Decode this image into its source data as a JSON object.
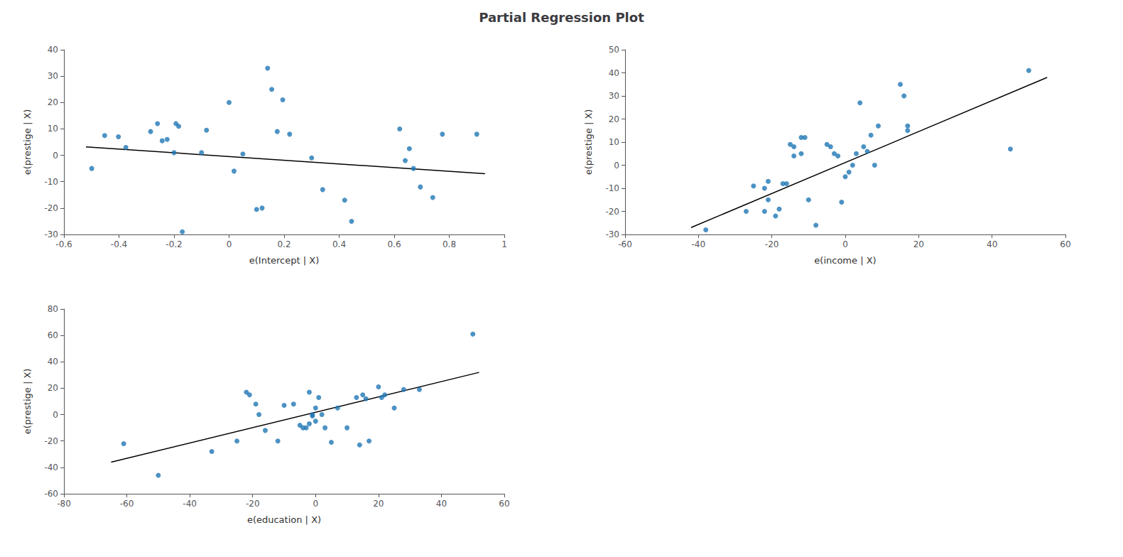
{
  "title": "Partial Regression Plot",
  "chart_data": [
    {
      "type": "scatter",
      "xlabel": "e(Intercept | X)",
      "ylabel": "e(prestige | X)",
      "xlim": [
        -0.6,
        1.0
      ],
      "xticks": [
        -0.6,
        -0.4,
        -0.2,
        0,
        0.2,
        0.4,
        0.6,
        0.8,
        1
      ],
      "ylim": [
        -30,
        40
      ],
      "yticks": [
        -30,
        -20,
        -10,
        0,
        10,
        20,
        30,
        40
      ],
      "grid": false,
      "series": [
        {
          "type": "scatter",
          "color": "#1f77b4",
          "x": [
            -0.499,
            -0.452,
            -0.402,
            -0.375,
            -0.285,
            -0.26,
            -0.243,
            -0.225,
            -0.2,
            -0.193,
            -0.183,
            -0.17,
            -0.1,
            -0.082,
            0.0,
            0.018,
            0.05,
            0.1,
            0.12,
            0.14,
            0.155,
            0.175,
            0.195,
            0.22,
            0.3,
            0.34,
            0.42,
            0.445,
            0.62,
            0.64,
            0.655,
            0.67,
            0.695,
            0.74,
            0.775,
            0.9
          ],
          "values": [
            -5.0,
            7.5,
            7.0,
            3.0,
            9.0,
            12.0,
            5.5,
            6.0,
            1.0,
            12.0,
            11.0,
            -29.0,
            1.0,
            9.5,
            20.0,
            -6.0,
            0.5,
            -20.5,
            -20.0,
            33.0,
            25.0,
            9.0,
            21.0,
            8.0,
            -1.0,
            -13.0,
            -17.0,
            -25.0,
            10.0,
            -2.0,
            2.5,
            -5.0,
            -12.0,
            -16.0,
            8.0,
            8.0
          ]
        },
        {
          "type": "line",
          "color": "black",
          "x": [
            -0.52,
            0.93
          ],
          "values": [
            3.2,
            -7.0
          ]
        }
      ]
    },
    {
      "type": "scatter",
      "xlabel": "e(income | X)",
      "ylabel": "e(prestige | X)",
      "xlim": [
        -60,
        60
      ],
      "xticks": [
        -60,
        -40,
        -20,
        0,
        20,
        40,
        60
      ],
      "ylim": [
        -30,
        50
      ],
      "yticks": [
        -30,
        -20,
        -10,
        0,
        10,
        20,
        30,
        40,
        50
      ],
      "grid": false,
      "series": [
        {
          "type": "scatter",
          "color": "#1f77b4",
          "x": [
            -38,
            -27,
            -25,
            -22,
            -22,
            -21,
            -21,
            -19,
            -18,
            -17,
            -16,
            -15,
            -14,
            -14,
            -12,
            -12,
            -11,
            -10,
            -8,
            -5,
            -4,
            -3,
            -2,
            -1,
            0,
            1,
            2,
            3,
            4,
            5,
            6,
            7,
            8,
            9,
            15,
            16,
            17,
            17,
            45,
            50
          ],
          "values": [
            -28,
            -20,
            -9,
            -10,
            -20,
            -7,
            -15,
            -22,
            -19,
            -8,
            -8,
            9,
            8,
            4,
            5,
            12,
            12,
            -15,
            -26,
            9,
            8,
            5,
            4,
            -16,
            -5,
            -3,
            0,
            5,
            27,
            8,
            6,
            13,
            0,
            17,
            35,
            30,
            15,
            17,
            7,
            41
          ]
        },
        {
          "type": "line",
          "color": "black",
          "x": [
            -42,
            55
          ],
          "values": [
            -27,
            38
          ]
        }
      ]
    },
    {
      "type": "scatter",
      "xlabel": "e(education | X)",
      "ylabel": "e(prestige | X)",
      "xlim": [
        -80,
        60
      ],
      "xticks": [
        -80,
        -60,
        -40,
        -20,
        0,
        20,
        40,
        60
      ],
      "ylim": [
        -60,
        80
      ],
      "yticks": [
        -60,
        -40,
        -20,
        0,
        20,
        40,
        60,
        80
      ],
      "grid": false,
      "series": [
        {
          "type": "scatter",
          "color": "#1f77b4",
          "x": [
            -61,
            -50,
            -33,
            -25,
            -22,
            -21,
            -19,
            -18,
            -16,
            -12,
            -10,
            -7,
            -5,
            -4,
            -3,
            -2,
            -2,
            -1,
            -1,
            0,
            0,
            1,
            2,
            3,
            5,
            7,
            10,
            13,
            14,
            15,
            16,
            17,
            20,
            21,
            22,
            25,
            28,
            33,
            50
          ],
          "values": [
            -22,
            -46,
            -28,
            -20,
            17,
            15,
            8,
            0,
            -12,
            -20,
            7,
            8,
            -8,
            -10,
            -10,
            -7,
            17,
            -1,
            0,
            5,
            -5,
            13,
            0,
            -10,
            -21,
            5,
            -10,
            13,
            -23,
            15,
            12,
            -20,
            21,
            13,
            15,
            5,
            19,
            19,
            61
          ]
        },
        {
          "type": "line",
          "color": "black",
          "x": [
            -65,
            52
          ],
          "values": [
            -36,
            32
          ]
        }
      ]
    }
  ]
}
